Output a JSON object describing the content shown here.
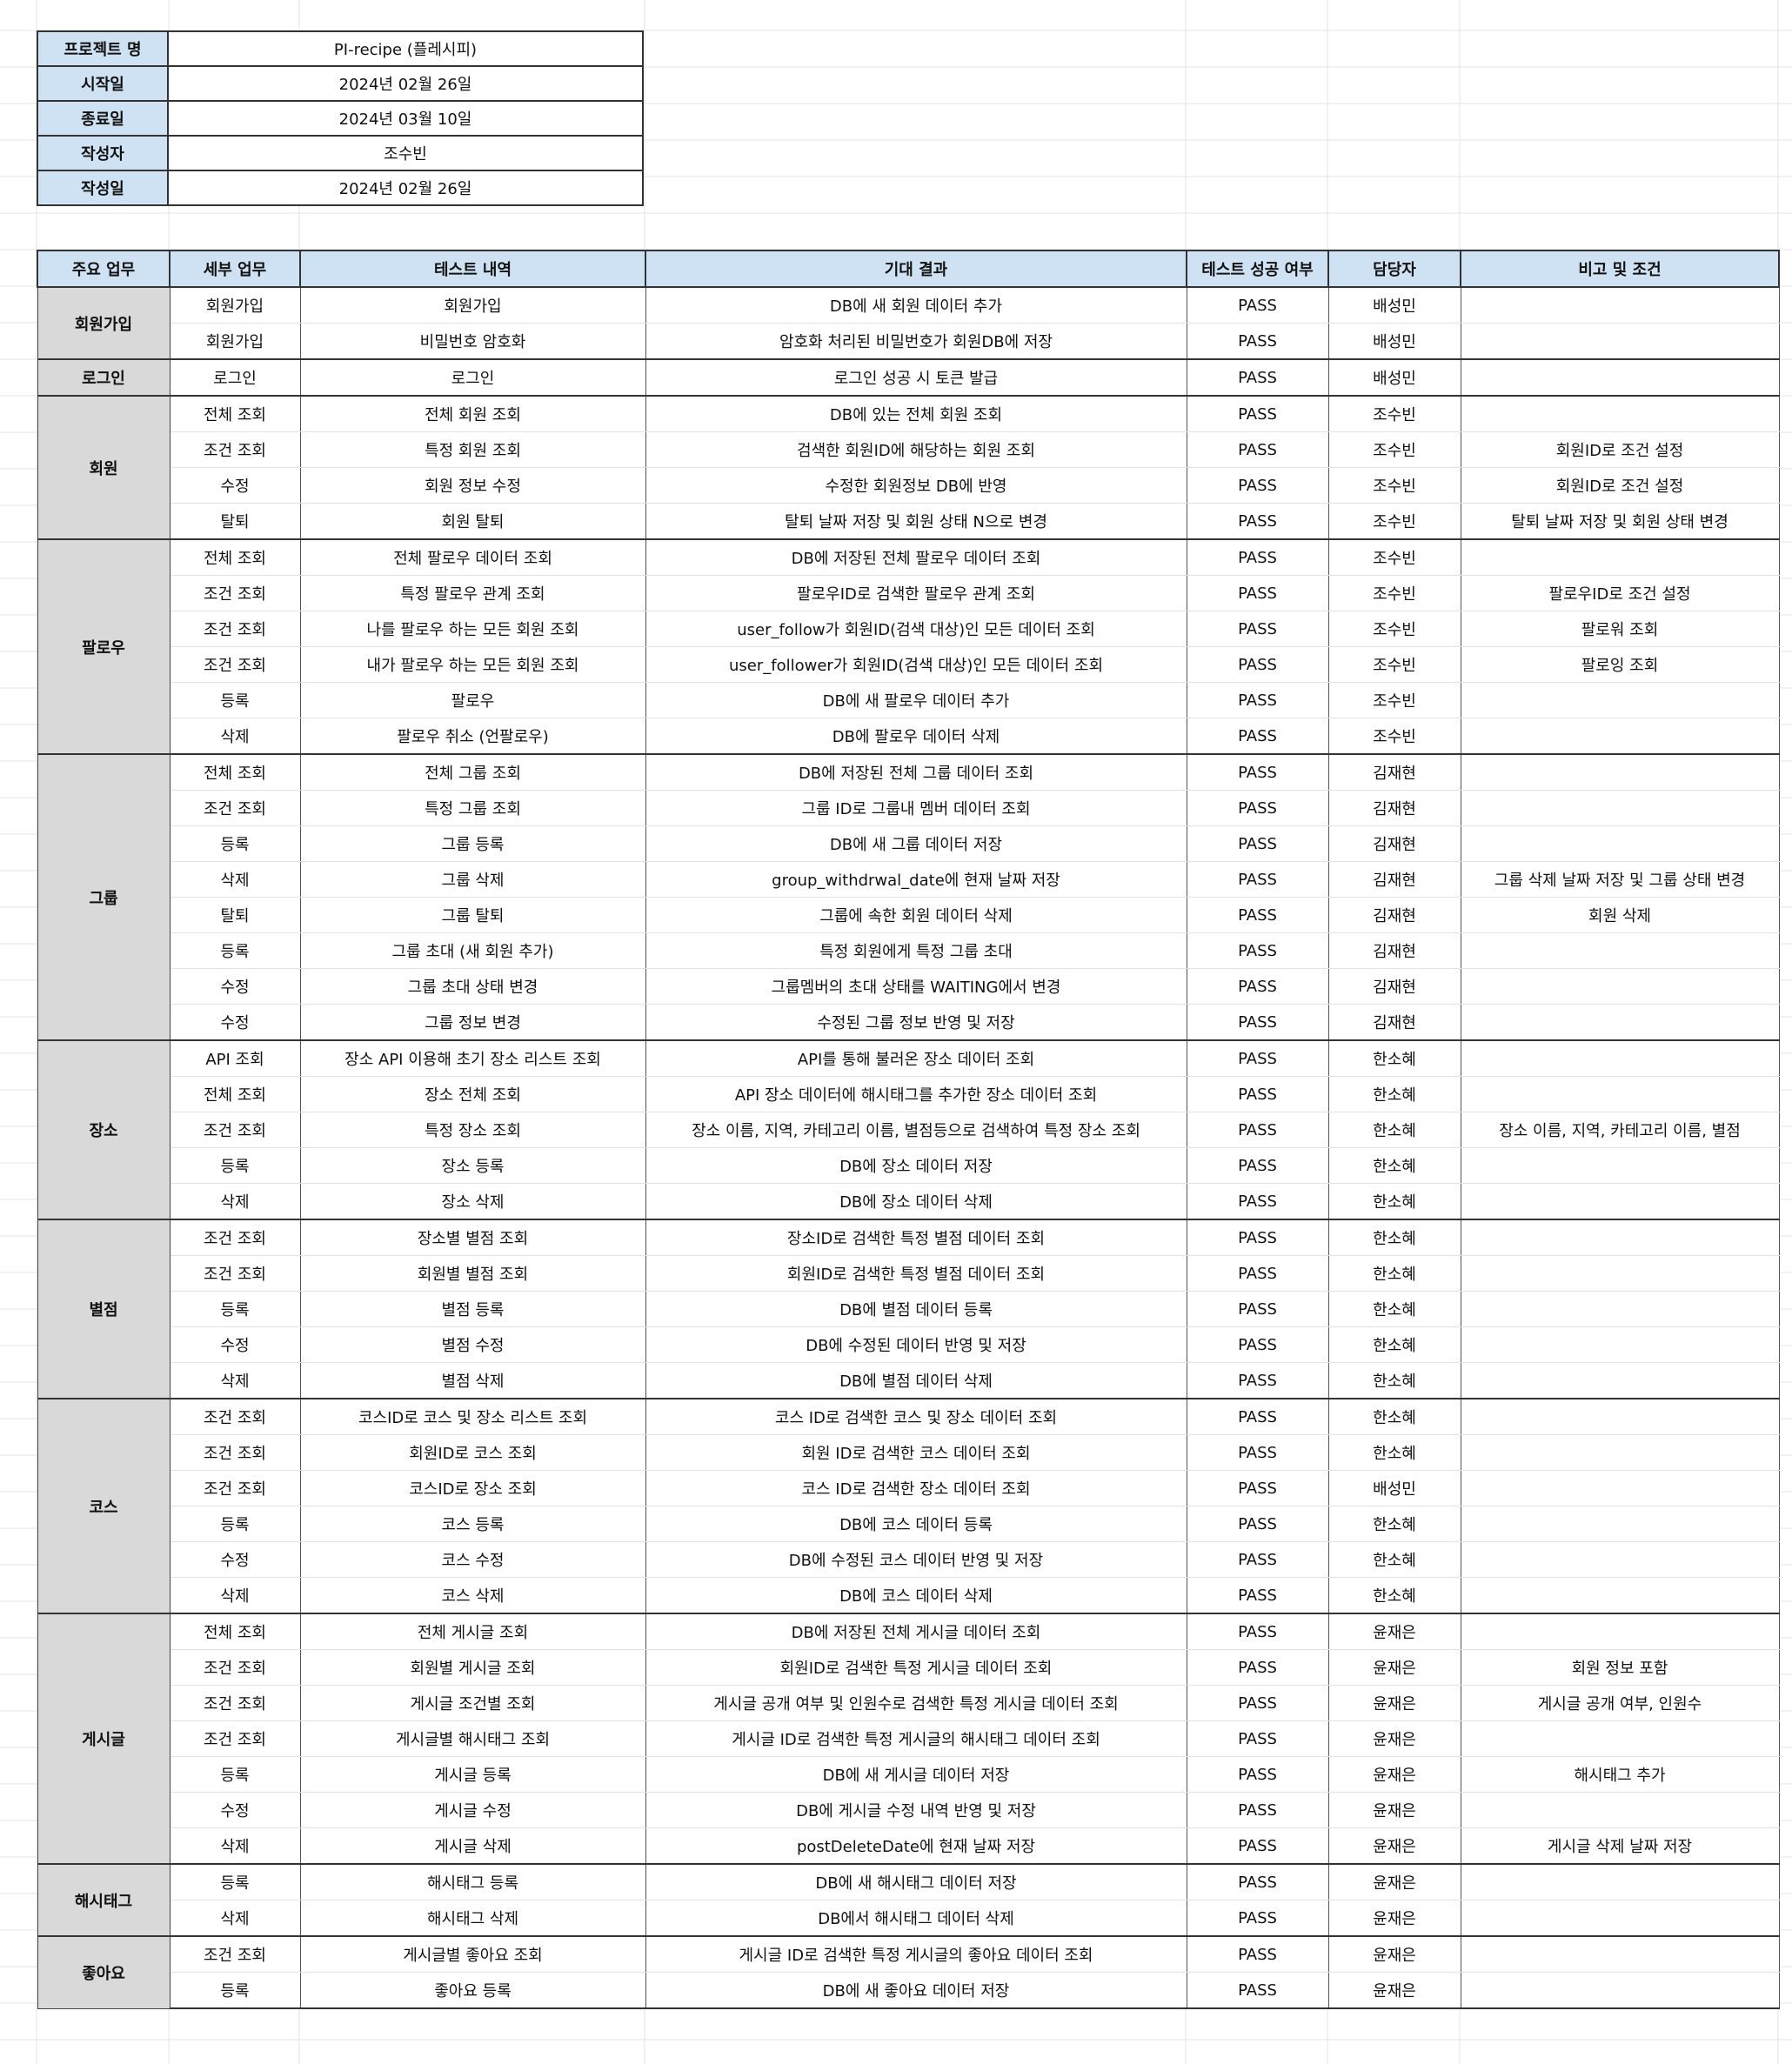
{
  "project_info": [
    {
      "label": "프로젝트 명",
      "value": "PI-recipe (플레시피)"
    },
    {
      "label": "시작일",
      "value": "2024년 02월 26일"
    },
    {
      "label": "종료일",
      "value": "2024년 03월 10일"
    },
    {
      "label": "작성자",
      "value": "조수빈"
    },
    {
      "label": "작성일",
      "value": "2024년 02월 26일"
    }
  ],
  "headers": [
    "주요 업무",
    "세부 업무",
    "테스트 내역",
    "기대 결과",
    "테스트 성공 여부",
    "담당자",
    "비고 및 조건"
  ],
  "groups": [
    {
      "category": "회원가입",
      "rows": [
        {
          "sub": "회원가입",
          "test": "회원가입",
          "expected": "DB에 새 회원 데이터 추가",
          "result": "PASS",
          "owner": "배성민",
          "note": ""
        },
        {
          "sub": "회원가입",
          "test": "비밀번호 암호화",
          "expected": "암호화 처리된 비밀번호가 회원DB에 저장",
          "result": "PASS",
          "owner": "배성민",
          "note": ""
        }
      ]
    },
    {
      "category": "로그인",
      "rows": [
        {
          "sub": "로그인",
          "test": "로그인",
          "expected": "로그인 성공 시 토큰 발급",
          "result": "PASS",
          "owner": "배성민",
          "note": ""
        }
      ]
    },
    {
      "category": "회원",
      "rows": [
        {
          "sub": "전체 조회",
          "test": "전체 회원 조회",
          "expected": "DB에 있는 전체 회원 조회",
          "result": "PASS",
          "owner": "조수빈",
          "note": ""
        },
        {
          "sub": "조건 조회",
          "test": "특정 회원 조회",
          "expected": "검색한 회원ID에 해당하는 회원 조회",
          "result": "PASS",
          "owner": "조수빈",
          "note": "회원ID로 조건 설정"
        },
        {
          "sub": "수정",
          "test": "회원 정보 수정",
          "expected": "수정한 회원정보 DB에 반영",
          "result": "PASS",
          "owner": "조수빈",
          "note": "회원ID로 조건 설정"
        },
        {
          "sub": "탈퇴",
          "test": "회원 탈퇴",
          "expected": "탈퇴 날짜 저장 및 회원 상태 N으로 변경",
          "result": "PASS",
          "owner": "조수빈",
          "note": "탈퇴 날짜 저장 및 회원 상태 변경"
        }
      ]
    },
    {
      "category": "팔로우",
      "rows": [
        {
          "sub": "전체 조회",
          "test": "전체 팔로우 데이터 조회",
          "expected": "DB에 저장된 전체 팔로우 데이터 조회",
          "result": "PASS",
          "owner": "조수빈",
          "note": ""
        },
        {
          "sub": "조건 조회",
          "test": "특정 팔로우 관계 조회",
          "expected": "팔로우ID로 검색한 팔로우 관계 조회",
          "result": "PASS",
          "owner": "조수빈",
          "note": "팔로우ID로 조건 설정"
        },
        {
          "sub": "조건 조회",
          "test": "나를 팔로우 하는 모든 회원 조회",
          "expected": "user_follow가 회원ID(검색 대상)인 모든 데이터 조회",
          "result": "PASS",
          "owner": "조수빈",
          "note": "팔로워 조회"
        },
        {
          "sub": "조건 조회",
          "test": "내가 팔로우 하는 모든 회원 조회",
          "expected": "user_follower가 회원ID(검색 대상)인 모든 데이터 조회",
          "result": "PASS",
          "owner": "조수빈",
          "note": "팔로잉 조회"
        },
        {
          "sub": "등록",
          "test": "팔로우",
          "expected": "DB에 새 팔로우 데이터 추가",
          "result": "PASS",
          "owner": "조수빈",
          "note": ""
        },
        {
          "sub": "삭제",
          "test": "팔로우 취소 (언팔로우)",
          "expected": "DB에 팔로우 데이터 삭제",
          "result": "PASS",
          "owner": "조수빈",
          "note": ""
        }
      ]
    },
    {
      "category": "그룹",
      "rows": [
        {
          "sub": "전체 조회",
          "test": "전체 그룹 조회",
          "expected": "DB에 저장된 전체 그룹 데이터 조회",
          "result": "PASS",
          "owner": "김재현",
          "note": ""
        },
        {
          "sub": "조건 조회",
          "test": "특정 그룹 조회",
          "expected": "그룹 ID로 그룹내 멤버 데이터 조회",
          "result": "PASS",
          "owner": "김재현",
          "note": ""
        },
        {
          "sub": "등록",
          "test": "그룹 등록",
          "expected": "DB에 새 그룹 데이터 저장",
          "result": "PASS",
          "owner": "김재현",
          "note": ""
        },
        {
          "sub": "삭제",
          "test": "그룹 삭제",
          "expected": "group_withdrwal_date에 현재 날짜 저장",
          "result": "PASS",
          "owner": "김재현",
          "note": "그룹 삭제 날짜 저장 및 그룹 상태 변경"
        },
        {
          "sub": "탈퇴",
          "test": "그룹 탈퇴",
          "expected": "그룹에 속한 회원 데이터 삭제",
          "result": "PASS",
          "owner": "김재현",
          "note": "회원 삭제"
        },
        {
          "sub": "등록",
          "test": "그룹 초대 (새 회원 추가)",
          "expected": "특정 회원에게 특정 그룹 초대",
          "result": "PASS",
          "owner": "김재현",
          "note": ""
        },
        {
          "sub": "수정",
          "test": "그룹 초대 상태 변경",
          "expected": "그룹멤버의 초대 상태를 WAITING에서 변경",
          "result": "PASS",
          "owner": "김재현",
          "note": ""
        },
        {
          "sub": "수정",
          "test": "그룹 정보 변경",
          "expected": "수정된 그룹 정보 반영 및 저장",
          "result": "PASS",
          "owner": "김재현",
          "note": ""
        }
      ]
    },
    {
      "category": "장소",
      "rows": [
        {
          "sub": "API 조회",
          "test": "장소 API 이용해 초기 장소 리스트 조회",
          "expected": "API를 통해 불러온 장소 데이터 조회",
          "result": "PASS",
          "owner": "한소혜",
          "note": ""
        },
        {
          "sub": "전체 조회",
          "test": "장소 전체 조회",
          "expected": "API 장소 데이터에 해시태그를 추가한 장소 데이터 조회",
          "result": "PASS",
          "owner": "한소혜",
          "note": ""
        },
        {
          "sub": "조건 조회",
          "test": "특정 장소 조회",
          "expected": "장소 이름, 지역, 카테고리 이름, 별점등으로 검색하여 특정 장소 조회",
          "result": "PASS",
          "owner": "한소혜",
          "note": "장소 이름, 지역, 카테고리 이름, 별점"
        },
        {
          "sub": "등록",
          "test": "장소 등록",
          "expected": "DB에 장소 데이터 저장",
          "result": "PASS",
          "owner": "한소혜",
          "note": ""
        },
        {
          "sub": "삭제",
          "test": "장소 삭제",
          "expected": "DB에 장소 데이터 삭제",
          "result": "PASS",
          "owner": "한소혜",
          "note": ""
        }
      ]
    },
    {
      "category": "별점",
      "rows": [
        {
          "sub": "조건 조회",
          "test": "장소별 별점 조회",
          "expected": "장소ID로 검색한 특정 별점 데이터 조회",
          "result": "PASS",
          "owner": "한소혜",
          "note": ""
        },
        {
          "sub": "조건 조회",
          "test": "회원별 별점 조회",
          "expected": "회원ID로 검색한 특정 별점 데이터 조회",
          "result": "PASS",
          "owner": "한소혜",
          "note": ""
        },
        {
          "sub": "등록",
          "test": "별점 등록",
          "expected": "DB에 별점 데이터 등록",
          "result": "PASS",
          "owner": "한소혜",
          "note": ""
        },
        {
          "sub": "수정",
          "test": "별점 수정",
          "expected": "DB에 수정된 데이터 반영 및 저장",
          "result": "PASS",
          "owner": "한소혜",
          "note": ""
        },
        {
          "sub": "삭제",
          "test": "별점 삭제",
          "expected": "DB에 별점 데이터 삭제",
          "result": "PASS",
          "owner": "한소혜",
          "note": ""
        }
      ]
    },
    {
      "category": "코스",
      "rows": [
        {
          "sub": "조건 조회",
          "test": "코스ID로 코스 및 장소 리스트 조회",
          "expected": "코스 ID로 검색한 코스 및 장소 데이터 조회",
          "result": "PASS",
          "owner": "한소혜",
          "note": ""
        },
        {
          "sub": "조건 조회",
          "test": "회원ID로  코스 조회",
          "expected": "회원 ID로 검색한 코스 데이터 조회",
          "result": "PASS",
          "owner": "한소혜",
          "note": ""
        },
        {
          "sub": "조건 조회",
          "test": "코스ID로 장소 조회",
          "expected": "코스 ID로 검색한 장소 데이터 조회",
          "result": "PASS",
          "owner": "배성민",
          "note": ""
        },
        {
          "sub": "등록",
          "test": "코스 등록",
          "expected": "DB에 코스 데이터 등록",
          "result": "PASS",
          "owner": "한소혜",
          "note": ""
        },
        {
          "sub": "수정",
          "test": "코스 수정",
          "expected": "DB에 수정된 코스 데이터 반영 및 저장",
          "result": "PASS",
          "owner": "한소혜",
          "note": ""
        },
        {
          "sub": "삭제",
          "test": "코스 삭제",
          "expected": "DB에 코스 데이터 삭제",
          "result": "PASS",
          "owner": "한소혜",
          "note": ""
        }
      ]
    },
    {
      "category": "게시글",
      "rows": [
        {
          "sub": "전체 조회",
          "test": "전체 게시글 조회",
          "expected": "DB에 저장된 전체 게시글 데이터 조회",
          "result": "PASS",
          "owner": "윤재은",
          "note": ""
        },
        {
          "sub": "조건 조회",
          "test": "회원별 게시글 조회",
          "expected": "회원ID로 검색한 특정 게시글 데이터 조회",
          "result": "PASS",
          "owner": "윤재은",
          "note": "회원 정보 포함"
        },
        {
          "sub": "조건 조회",
          "test": "게시글 조건별 조회",
          "expected": "게시글 공개 여부 및 인원수로 검색한 특정 게시글 데이터 조회",
          "result": "PASS",
          "owner": "윤재은",
          "note": "게시글 공개 여부, 인원수"
        },
        {
          "sub": "조건 조회",
          "test": "게시글별 해시태그 조회",
          "expected": "게시글 ID로 검색한 특정 게시글의 해시태그 데이터 조회",
          "result": "PASS",
          "owner": "윤재은",
          "note": ""
        },
        {
          "sub": "등록",
          "test": "게시글 등록",
          "expected": "DB에 새 게시글 데이터 저장",
          "result": "PASS",
          "owner": "윤재은",
          "note": "해시태그 추가"
        },
        {
          "sub": "수정",
          "test": "게시글 수정",
          "expected": "DB에 게시글 수정 내역 반영 및 저장",
          "result": "PASS",
          "owner": "윤재은",
          "note": ""
        },
        {
          "sub": "삭제",
          "test": "게시글 삭제",
          "expected": "postDeleteDate에 현재 날짜 저장",
          "result": "PASS",
          "owner": "윤재은",
          "note": "게시글 삭제 날짜 저장"
        }
      ]
    },
    {
      "category": "해시태그",
      "rows": [
        {
          "sub": "등록",
          "test": "해시태그 등록",
          "expected": "DB에 새 해시태그 데이터 저장",
          "result": "PASS",
          "owner": "윤재은",
          "note": ""
        },
        {
          "sub": "삭제",
          "test": "해시태그 삭제",
          "expected": "DB에서 해시태그 데이터 삭제",
          "result": "PASS",
          "owner": "윤재은",
          "note": ""
        }
      ]
    },
    {
      "category": "좋아요",
      "rows": [
        {
          "sub": "조건 조회",
          "test": "게시글별 좋아요 조회",
          "expected": "게시글 ID로 검색한 특정 게시글의 좋아요 데이터 조회",
          "result": "PASS",
          "owner": "윤재은",
          "note": ""
        },
        {
          "sub": "등록",
          "test": "좋아요 등록",
          "expected": "DB에 새 좋아요 데이터 저장",
          "result": "PASS",
          "owner": "윤재은",
          "note": ""
        }
      ]
    }
  ]
}
